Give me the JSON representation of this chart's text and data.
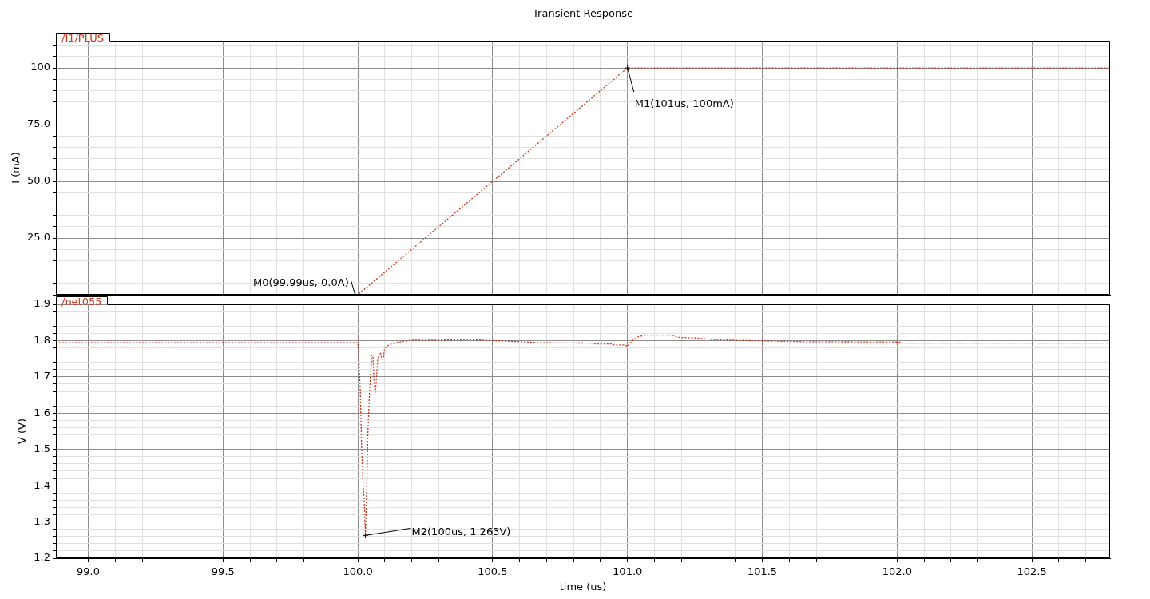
{
  "chart_data": [
    {
      "type": "line",
      "title": "Transient Response",
      "ylabel": "I (mA)",
      "x": [
        98.88,
        100.0,
        101.0,
        102.79
      ],
      "series": [
        {
          "name": "/I1/PLUS",
          "color": "#c8361a",
          "values": [
            0,
            0,
            100,
            100
          ]
        }
      ],
      "xlim": [
        98.88,
        102.79
      ],
      "ylim": [
        0,
        112
      ],
      "xticks": [
        {
          "value": 98.9,
          "label": null
        },
        99,
        {
          "value": 99.1,
          "label": null
        },
        {
          "value": 99.2,
          "label": null
        },
        {
          "value": 99.3,
          "label": null
        },
        {
          "value": 99.4,
          "label": null
        },
        99.5,
        {
          "value": 99.6,
          "label": null
        },
        {
          "value": 99.7,
          "label": null
        },
        {
          "value": 99.8,
          "label": null
        },
        {
          "value": 99.9,
          "label": null
        },
        100,
        {
          "value": 100.1,
          "label": null
        },
        {
          "value": 100.2,
          "label": null
        },
        {
          "value": 100.3,
          "label": null
        },
        {
          "value": 100.4,
          "label": null
        },
        100.5,
        {
          "value": 100.6,
          "label": null
        },
        {
          "value": 100.7,
          "label": null
        },
        {
          "value": 100.8,
          "label": null
        },
        {
          "value": 100.9,
          "label": null
        },
        101,
        {
          "value": 101.1,
          "label": null
        },
        {
          "value": 101.2,
          "label": null
        },
        {
          "value": 101.3,
          "label": null
        },
        {
          "value": 101.4,
          "label": null
        },
        101.5,
        {
          "value": 101.6,
          "label": null
        },
        {
          "value": 101.7,
          "label": null
        },
        {
          "value": 101.8,
          "label": null
        },
        {
          "value": 101.9,
          "label": null
        },
        102,
        {
          "value": 102.1,
          "label": null
        },
        {
          "value": 102.2,
          "label": null
        },
        {
          "value": 102.3,
          "label": null
        },
        {
          "value": 102.4,
          "label": null
        },
        102.5,
        {
          "value": 102.6,
          "label": null
        },
        {
          "value": 102.7,
          "label": null
        }
      ],
      "yticks": [
        {
          "value": 0,
          "label": null
        },
        {
          "value": 5,
          "label": null
        },
        {
          "value": 10,
          "label": null
        },
        {
          "value": 15,
          "label": null
        },
        {
          "value": 20,
          "label": null
        },
        {
          "value": 25,
          "label": "25.0"
        },
        {
          "value": 30,
          "label": null
        },
        {
          "value": 35,
          "label": null
        },
        {
          "value": 40,
          "label": null
        },
        {
          "value": 45,
          "label": null
        },
        {
          "value": 50,
          "label": "50.0"
        },
        {
          "value": 55,
          "label": null
        },
        {
          "value": 60,
          "label": null
        },
        {
          "value": 65,
          "label": null
        },
        {
          "value": 70,
          "label": null
        },
        {
          "value": 75,
          "label": "75.0"
        },
        {
          "value": 80,
          "label": null
        },
        {
          "value": 85,
          "label": null
        },
        {
          "value": 90,
          "label": null
        },
        {
          "value": 95,
          "label": null
        },
        100,
        {
          "value": 105,
          "label": null
        },
        {
          "value": 110,
          "label": null
        }
      ],
      "tick_labels": "y",
      "grid": true,
      "legend": "top left",
      "line_style": "dotted",
      "annotations": [
        {
          "text": "M0(99.99us, 0.0A)",
          "x": 99.99,
          "y": 0
        },
        {
          "text": "M1(101us, 100mA)",
          "x": 101,
          "y": 100
        }
      ]
    },
    {
      "type": "line",
      "xlabel": "time (us)",
      "ylabel": "V (V)",
      "series": [
        {
          "name": "/net055",
          "color": "#c8361a",
          "x": [
            98.88,
            100.0,
            100.003,
            100.009,
            100.014,
            100.02,
            100.024,
            100.028,
            100.033,
            100.037,
            100.043,
            100.047,
            100.052,
            100.056,
            100.06,
            100.064,
            100.068,
            100.073,
            100.079,
            100.084,
            100.089,
            100.094,
            100.099,
            100.108,
            100.123,
            100.143,
            100.173,
            100.202,
            100.291,
            100.409,
            100.5,
            100.597,
            100.676,
            100.873,
            100.88,
            100.943,
            100.95,
            100.992,
            100.999,
            101.02,
            101.041,
            101.068,
            101.166,
            101.187,
            101.25,
            101.32,
            101.39,
            101.501,
            101.655,
            102.004,
            102.025,
            102.79
          ],
          "values": [
            1.794,
            1.794,
            1.757,
            1.664,
            1.503,
            1.396,
            1.352,
            1.263,
            1.396,
            1.543,
            1.653,
            1.705,
            1.76,
            1.756,
            1.683,
            1.657,
            1.683,
            1.745,
            1.762,
            1.767,
            1.749,
            1.749,
            1.778,
            1.785,
            1.79,
            1.794,
            1.799,
            1.801,
            1.801,
            1.803,
            1.8,
            1.797,
            1.794,
            1.793,
            1.791,
            1.791,
            1.788,
            1.788,
            1.784,
            1.801,
            1.811,
            1.815,
            1.815,
            1.809,
            1.807,
            1.803,
            1.801,
            1.799,
            1.797,
            1.796,
            1.793,
            1.793
          ]
        }
      ],
      "xlim": [
        98.88,
        102.79
      ],
      "ylim": [
        1.2,
        1.9
      ],
      "xticks": [
        {
          "value": 98.9,
          "label": null
        },
        {
          "value": 99,
          "label": "99.0"
        },
        {
          "value": 99.1,
          "label": null
        },
        {
          "value": 99.2,
          "label": null
        },
        {
          "value": 99.3,
          "label": null
        },
        {
          "value": 99.4,
          "label": null
        },
        99.5,
        {
          "value": 99.6,
          "label": null
        },
        {
          "value": 99.7,
          "label": null
        },
        {
          "value": 99.8,
          "label": null
        },
        {
          "value": 99.9,
          "label": null
        },
        {
          "value": 100,
          "label": "100.0"
        },
        {
          "value": 100.1,
          "label": null
        },
        {
          "value": 100.2,
          "label": null
        },
        {
          "value": 100.3,
          "label": null
        },
        {
          "value": 100.4,
          "label": null
        },
        100.5,
        {
          "value": 100.6,
          "label": null
        },
        {
          "value": 100.7,
          "label": null
        },
        {
          "value": 100.8,
          "label": null
        },
        {
          "value": 100.9,
          "label": null
        },
        {
          "value": 101,
          "label": "101.0"
        },
        {
          "value": 101.1,
          "label": null
        },
        {
          "value": 101.2,
          "label": null
        },
        {
          "value": 101.3,
          "label": null
        },
        {
          "value": 101.4,
          "label": null
        },
        101.5,
        {
          "value": 101.6,
          "label": null
        },
        {
          "value": 101.7,
          "label": null
        },
        {
          "value": 101.8,
          "label": null
        },
        {
          "value": 101.9,
          "label": null
        },
        {
          "value": 102,
          "label": "102.0"
        },
        {
          "value": 102.1,
          "label": null
        },
        {
          "value": 102.2,
          "label": null
        },
        {
          "value": 102.3,
          "label": null
        },
        {
          "value": 102.4,
          "label": null
        },
        102.5,
        {
          "value": 102.6,
          "label": null
        },
        {
          "value": 102.7,
          "label": null
        }
      ],
      "yticks": [
        1.2,
        {
          "value": 1.22,
          "label": null
        },
        {
          "value": 1.24,
          "label": null
        },
        {
          "value": 1.26,
          "label": null
        },
        {
          "value": 1.28,
          "label": null
        },
        1.3,
        {
          "value": 1.32,
          "label": null
        },
        {
          "value": 1.34,
          "label": null
        },
        {
          "value": 1.36,
          "label": null
        },
        {
          "value": 1.38,
          "label": null
        },
        1.4,
        {
          "value": 1.42,
          "label": null
        },
        {
          "value": 1.44,
          "label": null
        },
        {
          "value": 1.46,
          "label": null
        },
        {
          "value": 1.48,
          "label": null
        },
        1.5,
        {
          "value": 1.52,
          "label": null
        },
        {
          "value": 1.54,
          "label": null
        },
        {
          "value": 1.56,
          "label": null
        },
        {
          "value": 1.58,
          "label": null
        },
        1.6,
        {
          "value": 1.62,
          "label": null
        },
        {
          "value": 1.64,
          "label": null
        },
        {
          "value": 1.66,
          "label": null
        },
        {
          "value": 1.68,
          "label": null
        },
        1.7,
        {
          "value": 1.72,
          "label": null
        },
        {
          "value": 1.74,
          "label": null
        },
        {
          "value": 1.76,
          "label": null
        },
        {
          "value": 1.78,
          "label": null
        },
        1.8,
        {
          "value": 1.82,
          "label": null
        },
        {
          "value": 1.84,
          "label": null
        },
        {
          "value": 1.86,
          "label": null
        },
        {
          "value": 1.88,
          "label": null
        },
        1.9
      ],
      "grid": true,
      "legend": "top left",
      "line_style": "dotted",
      "annotations": [
        {
          "text": "M2(100us, 1.263V)",
          "x": 100.028,
          "y": 1.263
        }
      ]
    }
  ]
}
